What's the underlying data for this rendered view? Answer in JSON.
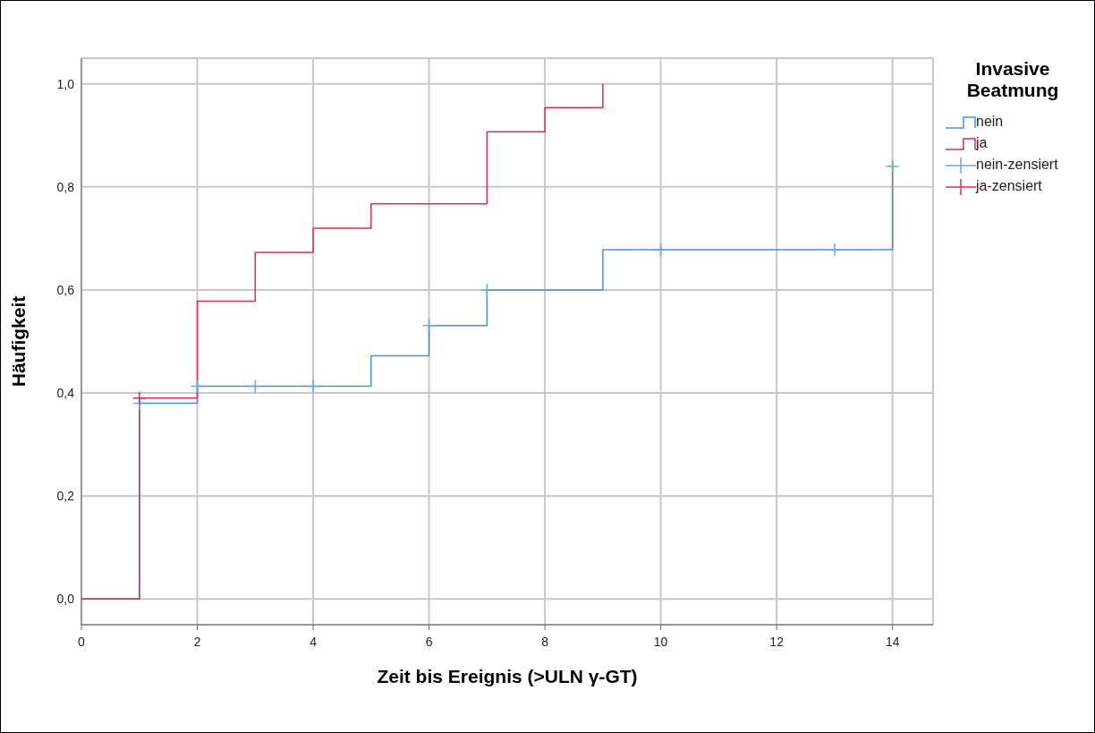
{
  "chart_data": {
    "type": "step",
    "xlabel": "Zeit bis Ereignis (>ULN γ-GT)",
    "ylabel": "Häufigkeit",
    "legend_title": "Invasive Beatmung",
    "xlim": [
      0,
      14.7
    ],
    "xticks": [
      0,
      2,
      4,
      6,
      8,
      10,
      12,
      14
    ],
    "ylim": [
      -0.05,
      1.05
    ],
    "yticks": [
      {
        "value": 0,
        "label": "0,0"
      },
      {
        "value": 0.2,
        "label": "0,2"
      },
      {
        "value": 0.4,
        "label": "0,4"
      },
      {
        "value": 0.6,
        "label": "0,6"
      },
      {
        "value": 0.8,
        "label": "0,8"
      },
      {
        "value": 1.0,
        "label": "1,0"
      }
    ],
    "grid": true,
    "legend": "top right",
    "series": [
      {
        "name": "nein",
        "color": "#4a8ee0",
        "x": [
          0,
          1,
          2,
          5,
          6,
          7,
          9,
          14
        ],
        "values": [
          0,
          0.38,
          0.413,
          0.472,
          0.531,
          0.6,
          0.678,
          0.84
        ]
      },
      {
        "name": "ja",
        "color": "#de2c52",
        "x": [
          0,
          1,
          2,
          3,
          4,
          5,
          7,
          8,
          9
        ],
        "values": [
          0,
          0.39,
          0.578,
          0.673,
          0.72,
          0.767,
          0.907,
          0.954,
          1.0
        ]
      },
      {
        "name": "nein-zensiert",
        "type": "scatter",
        "marker": "cross",
        "color": "#6aa6ea",
        "x": [
          1,
          2,
          3,
          4,
          6,
          7,
          10,
          13,
          14
        ],
        "values": [
          0.38,
          0.413,
          0.413,
          0.413,
          0.531,
          0.6,
          0.678,
          0.678,
          0.84
        ]
      },
      {
        "name": "ja-zensiert",
        "type": "scatter",
        "marker": "cross",
        "color": "#de2c52",
        "x": [
          1
        ],
        "values": [
          0.39
        ]
      }
    ]
  }
}
